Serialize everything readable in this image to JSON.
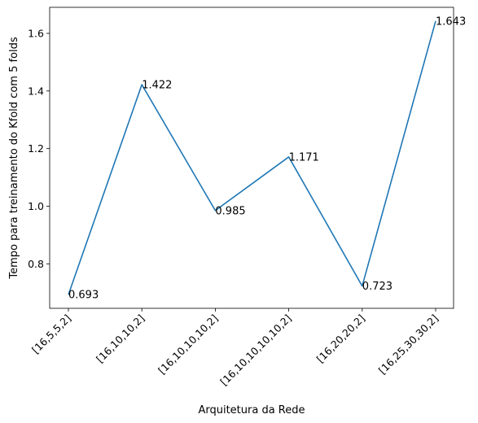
{
  "chart_data": {
    "type": "line",
    "categories": [
      "[16,5,5,2]",
      "[16,10,10,2]",
      "[16,10,10,10,2]",
      "[16,10,10,10,10,2]",
      "[16,20,20,2]",
      "[16,25,30,30,2]"
    ],
    "values": [
      0.693,
      1.422,
      0.985,
      1.171,
      0.723,
      1.643
    ],
    "data_labels": [
      "0.693",
      "1.422",
      "0.985",
      "1.171",
      "0.723",
      "1.643"
    ],
    "xlabel": "Arquitetura da Rede",
    "ylabel": "Tempo para treinamento do Kfold com 5 folds",
    "ylim": [
      0.6456,
      1.6904
    ],
    "yticks": [
      0.8,
      1.0,
      1.2,
      1.4,
      1.6
    ],
    "ytick_labels": [
      "0.8",
      "1.0",
      "1.2",
      "1.4",
      "1.6"
    ],
    "line_color": "#1f77b4",
    "grid": false,
    "legend": "none"
  }
}
